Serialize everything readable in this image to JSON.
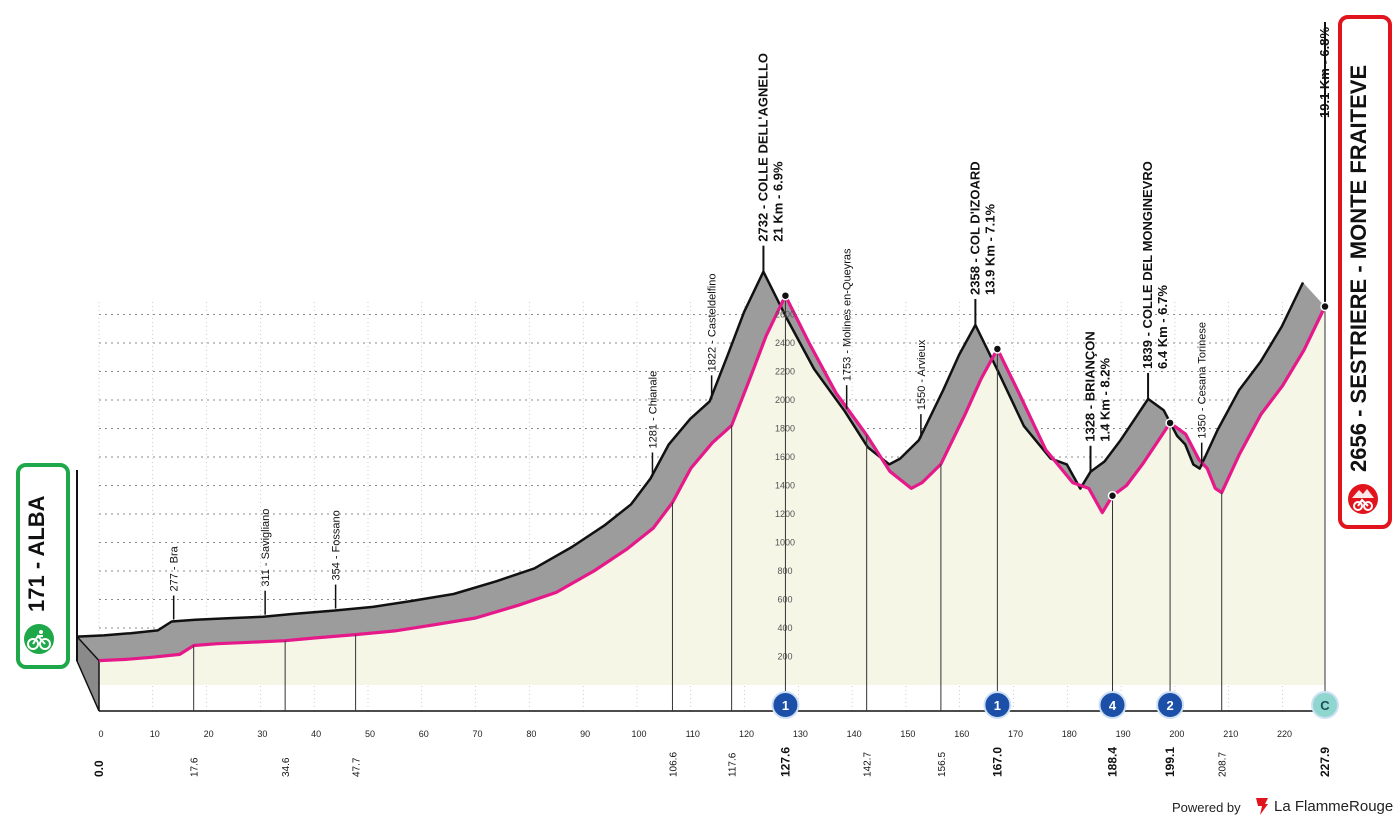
{
  "start": {
    "km": "171",
    "name": "ALBA",
    "icon": "cyclist-icon",
    "color": "#1ea84a"
  },
  "finish": {
    "elevation": "2656",
    "name": "SESTRIERE - MONTE FRAITEVE",
    "climb": "19.1 Km - 6.8%",
    "icon": "cyclist-mountain-icon",
    "color": "#e1141d"
  },
  "footer": {
    "powered": "Powered by",
    "brand": "La FlammeRouge"
  },
  "chart_data": {
    "type": "area",
    "xlabel": "",
    "ylabel": "",
    "xlim": [
      0,
      227.9
    ],
    "ylim": [
      0,
      2800
    ],
    "grid": true,
    "colors": {
      "profile_fill": "#f5f6e6",
      "road": "#e5198a",
      "wall": "#9c9c9c",
      "outline": "#111111"
    },
    "x_ticks": [
      "0",
      "10",
      "20",
      "30",
      "40",
      "50",
      "60",
      "70",
      "80",
      "90",
      "100",
      "110",
      "120",
      "130",
      "140",
      "150",
      "160",
      "170",
      "180",
      "190",
      "200",
      "210",
      "220"
    ],
    "y_ticks": [
      "200",
      "400",
      "600",
      "800",
      "1000",
      "1200",
      "1400",
      "1600",
      "1800",
      "2000",
      "2200",
      "2400",
      "2600"
    ],
    "profile": [
      {
        "km": 0,
        "alt": 171
      },
      {
        "km": 5,
        "alt": 180
      },
      {
        "km": 10,
        "alt": 195
      },
      {
        "km": 15,
        "alt": 215
      },
      {
        "km": 17.6,
        "alt": 277
      },
      {
        "km": 22,
        "alt": 290
      },
      {
        "km": 28,
        "alt": 300
      },
      {
        "km": 34.6,
        "alt": 311
      },
      {
        "km": 40,
        "alt": 330
      },
      {
        "km": 47.7,
        "alt": 354
      },
      {
        "km": 55,
        "alt": 380
      },
      {
        "km": 62,
        "alt": 420
      },
      {
        "km": 70,
        "alt": 470
      },
      {
        "km": 78,
        "alt": 560
      },
      {
        "km": 85,
        "alt": 650
      },
      {
        "km": 92,
        "alt": 800
      },
      {
        "km": 98,
        "alt": 950
      },
      {
        "km": 103,
        "alt": 1100
      },
      {
        "km": 106.6,
        "alt": 1281
      },
      {
        "km": 110,
        "alt": 1520
      },
      {
        "km": 114,
        "alt": 1700
      },
      {
        "km": 117.6,
        "alt": 1822
      },
      {
        "km": 121,
        "alt": 2150
      },
      {
        "km": 124,
        "alt": 2450
      },
      {
        "km": 127.6,
        "alt": 2732
      },
      {
        "km": 132,
        "alt": 2400
      },
      {
        "km": 137,
        "alt": 2050
      },
      {
        "km": 142.7,
        "alt": 1753
      },
      {
        "km": 147,
        "alt": 1500
      },
      {
        "km": 151,
        "alt": 1380
      },
      {
        "km": 153,
        "alt": 1420
      },
      {
        "km": 156.5,
        "alt": 1550
      },
      {
        "km": 161,
        "alt": 1900
      },
      {
        "km": 164,
        "alt": 2150
      },
      {
        "km": 167,
        "alt": 2358
      },
      {
        "km": 171,
        "alt": 2050
      },
      {
        "km": 176,
        "alt": 1650
      },
      {
        "km": 181,
        "alt": 1420
      },
      {
        "km": 184,
        "alt": 1380
      },
      {
        "km": 186.5,
        "alt": 1210
      },
      {
        "km": 188.4,
        "alt": 1328
      },
      {
        "km": 191,
        "alt": 1400
      },
      {
        "km": 194,
        "alt": 1550
      },
      {
        "km": 197,
        "alt": 1720
      },
      {
        "km": 199.1,
        "alt": 1839
      },
      {
        "km": 202,
        "alt": 1760
      },
      {
        "km": 204.5,
        "alt": 1580
      },
      {
        "km": 206,
        "alt": 1520
      },
      {
        "km": 207.5,
        "alt": 1380
      },
      {
        "km": 208.7,
        "alt": 1350
      },
      {
        "km": 212,
        "alt": 1620
      },
      {
        "km": 216,
        "alt": 1900
      },
      {
        "km": 220,
        "alt": 2100
      },
      {
        "km": 224,
        "alt": 2350
      },
      {
        "km": 227.9,
        "alt": 2656
      }
    ],
    "waypoints": [
      {
        "km": 17.6,
        "alt": "277",
        "name": "Bra"
      },
      {
        "km": 34.6,
        "alt": "311",
        "name": "Savigliano"
      },
      {
        "km": 47.7,
        "alt": "354",
        "name": "Fossano"
      },
      {
        "km": 106.6,
        "alt": "1281",
        "name": "Chianale"
      },
      {
        "km": 117.6,
        "alt": "1822",
        "name": "Casteldelfino"
      },
      {
        "km": 142.7,
        "alt": "1753",
        "name": "Molines en-Queyras"
      },
      {
        "km": 156.5,
        "alt": "1550",
        "name": "Arvieux"
      },
      {
        "km": 208.7,
        "alt": "1350",
        "name": "Cesana Torinese"
      }
    ],
    "climbs": [
      {
        "km": 127.6,
        "alt": "2732",
        "name": "COLLE DELL'AGNELLO",
        "detail": "21 Km - 6.9%",
        "category": "1"
      },
      {
        "km": 167.0,
        "alt": "2358",
        "name": "COL D'IZOARD",
        "detail": "13.9 Km - 7.1%",
        "category": "1"
      },
      {
        "km": 188.4,
        "alt": "1328",
        "name": "BRIANÇON",
        "detail": "1.4 Km - 8.2%",
        "category": "4"
      },
      {
        "km": 199.1,
        "alt": "1839",
        "name": "COLLE DEL MONGINEVRO",
        "detail": "6.4 Km - 6.7%",
        "category": "2"
      },
      {
        "km": 227.9,
        "alt": "2656",
        "name": "",
        "detail": "",
        "category": "C"
      }
    ],
    "km_markers": [
      "0.0",
      "17.6",
      "34.6",
      "47.7",
      "106.6",
      "117.6",
      "127.6",
      "142.7",
      "156.5",
      "167.0",
      "188.4",
      "199.1",
      "208.7",
      "227.9"
    ]
  }
}
